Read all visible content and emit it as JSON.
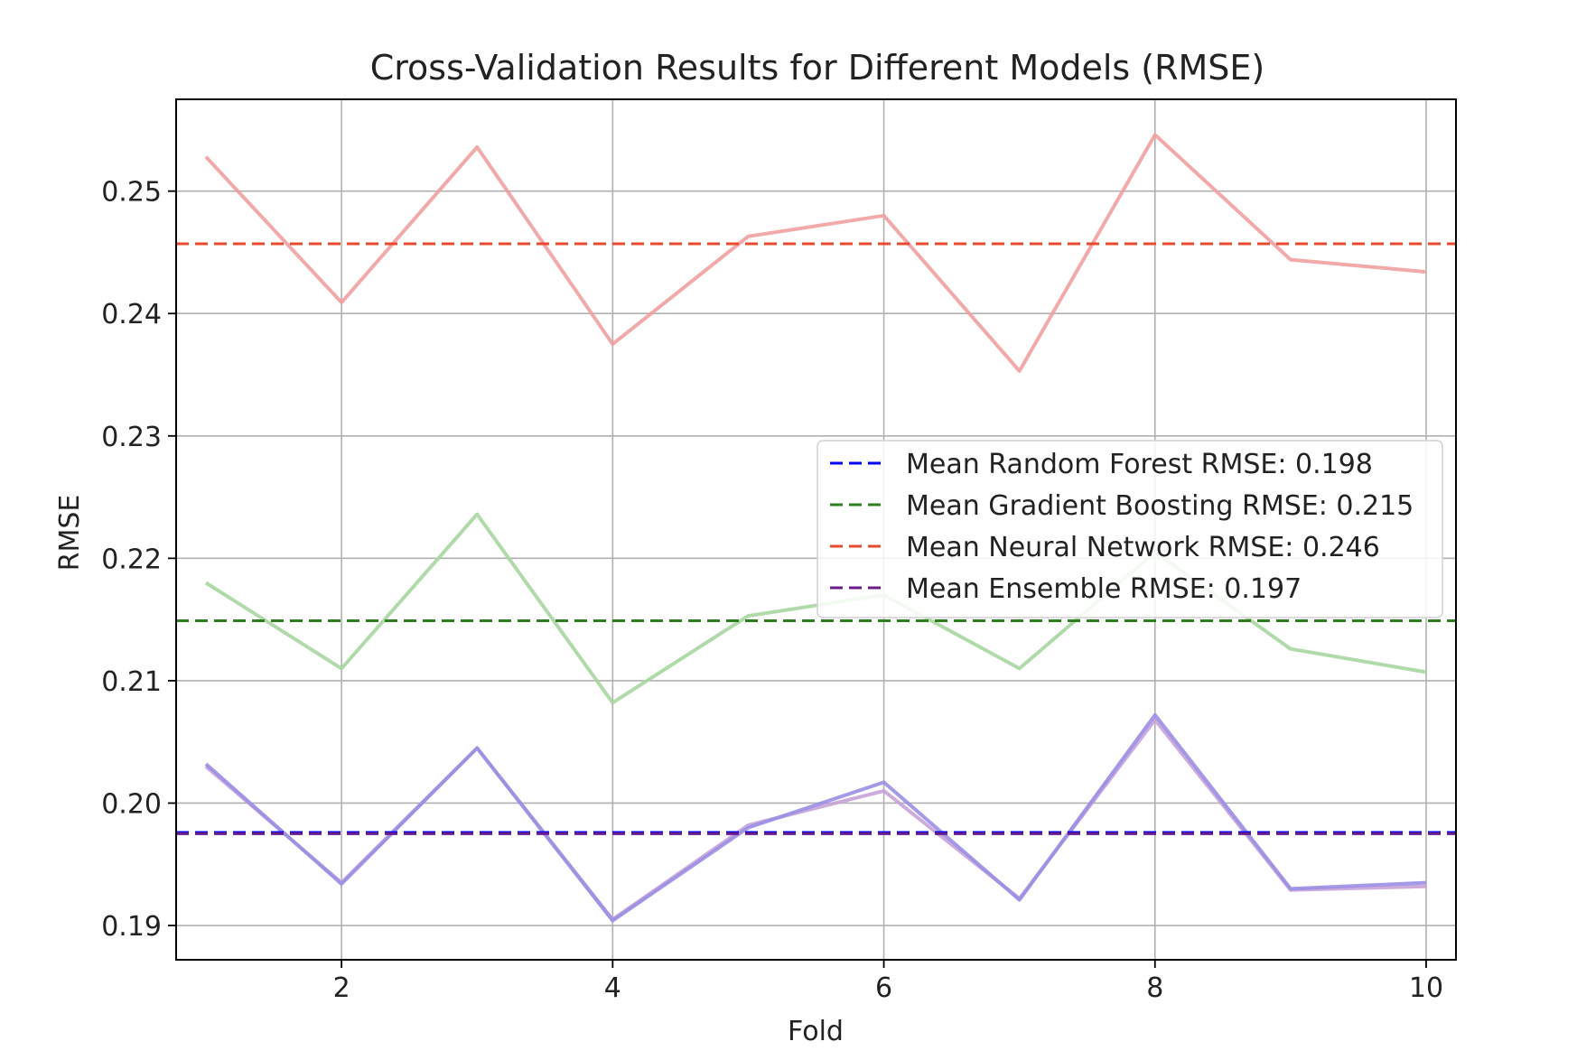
{
  "chart_data": {
    "type": "line",
    "title": "Cross-Validation Results for Different Models (RMSE)",
    "xlabel": "Fold",
    "ylabel": "RMSE",
    "xlim": [
      0.78,
      10.22
    ],
    "ylim": [
      0.1872,
      0.2575
    ],
    "x_ticks": [
      2,
      4,
      6,
      8,
      10
    ],
    "y_ticks": [
      0.19,
      0.2,
      0.21,
      0.22,
      0.23,
      0.24,
      0.25
    ],
    "y_tick_labels": [
      "0.19",
      "0.20",
      "0.21",
      "0.22",
      "0.23",
      "0.24",
      "0.25"
    ],
    "grid": true,
    "legend_position": "center-right",
    "x": [
      1,
      2,
      3,
      4,
      5,
      6,
      7,
      8,
      9,
      10
    ],
    "series": [
      {
        "key": "nn",
        "color": "#f0a0a0",
        "values": [
          0.2528,
          0.2409,
          0.2536,
          0.2375,
          0.2463,
          0.248,
          0.2353,
          0.2546,
          0.2444,
          0.2434
        ]
      },
      {
        "key": "gb",
        "color": "#a7d6a0",
        "values": [
          0.218,
          0.211,
          0.2236,
          0.2082,
          0.2153,
          0.217,
          0.211,
          0.2205,
          0.2126,
          0.2107
        ]
      },
      {
        "key": "ens",
        "color": "#c8a2d8",
        "values": [
          0.203,
          0.1935,
          0.2045,
          0.1905,
          0.1982,
          0.201,
          0.1922,
          0.2068,
          0.1929,
          0.1932
        ]
      },
      {
        "key": "rf",
        "color": "#9a8fe4",
        "values": [
          0.2032,
          0.1934,
          0.2045,
          0.1904,
          0.198,
          0.2017,
          0.1921,
          0.2072,
          0.193,
          0.1935
        ]
      }
    ],
    "mean_lines": [
      {
        "label": "Mean Random Forest RMSE: 0.198",
        "value": 0.1976,
        "color": "#0000ff"
      },
      {
        "label": "Mean Gradient Boosting RMSE: 0.215",
        "value": 0.2149,
        "color": "#2e7d1e"
      },
      {
        "label": "Mean Neural Network RMSE: 0.246",
        "value": 0.2457,
        "color": "#e84a2f"
      },
      {
        "label": "Mean Ensemble RMSE: 0.197",
        "value": 0.1975,
        "color": "#6a1b8a"
      }
    ]
  }
}
